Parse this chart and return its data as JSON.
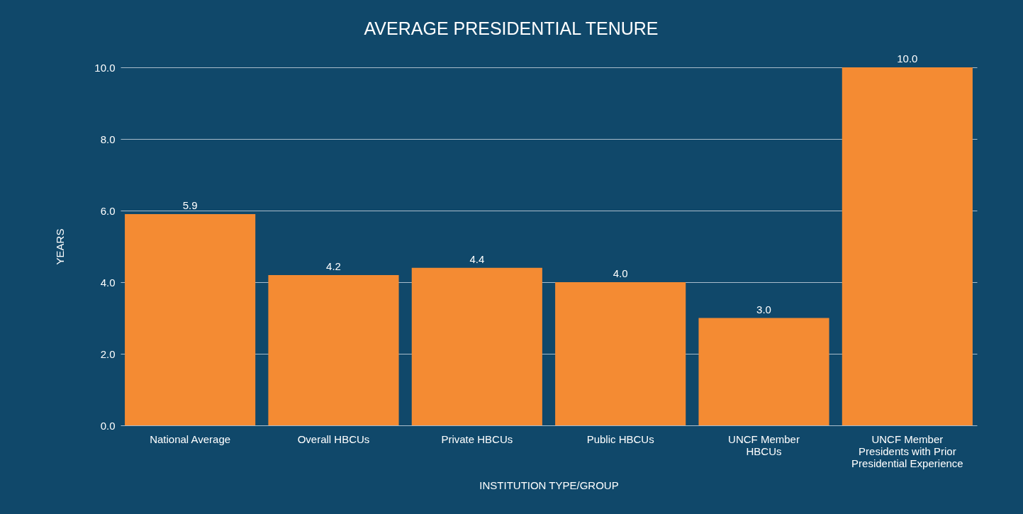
{
  "chart_data": {
    "type": "bar",
    "title": "AVERAGE PRESIDENTIAL TENURE",
    "xlabel": "INSTITUTION TYPE/GROUP",
    "ylabel": "YEARS",
    "categories": [
      "National Average",
      "Overall HBCUs",
      "Private HBCUs",
      "Public HBCUs",
      "UNCF Member\nHBCUs",
      "UNCF Member\nPresidents with Prior\nPresidential Experience"
    ],
    "values": [
      5.9,
      4.2,
      4.4,
      4.0,
      3.0,
      10.0
    ],
    "value_labels": [
      "5.9",
      "4.2",
      "4.4",
      "4.0",
      "3.0",
      "10.0"
    ],
    "color": "#f48b33",
    "ylim": [
      0,
      10
    ],
    "yticks": [
      {
        "value": 0,
        "label": "0.0"
      },
      {
        "value": 2,
        "label": "2.0"
      },
      {
        "value": 4,
        "label": "4.0"
      },
      {
        "value": 6,
        "label": "6.0"
      },
      {
        "value": 8,
        "label": "8.0"
      },
      {
        "value": 10,
        "label": "10.0"
      }
    ],
    "grid": "y"
  }
}
